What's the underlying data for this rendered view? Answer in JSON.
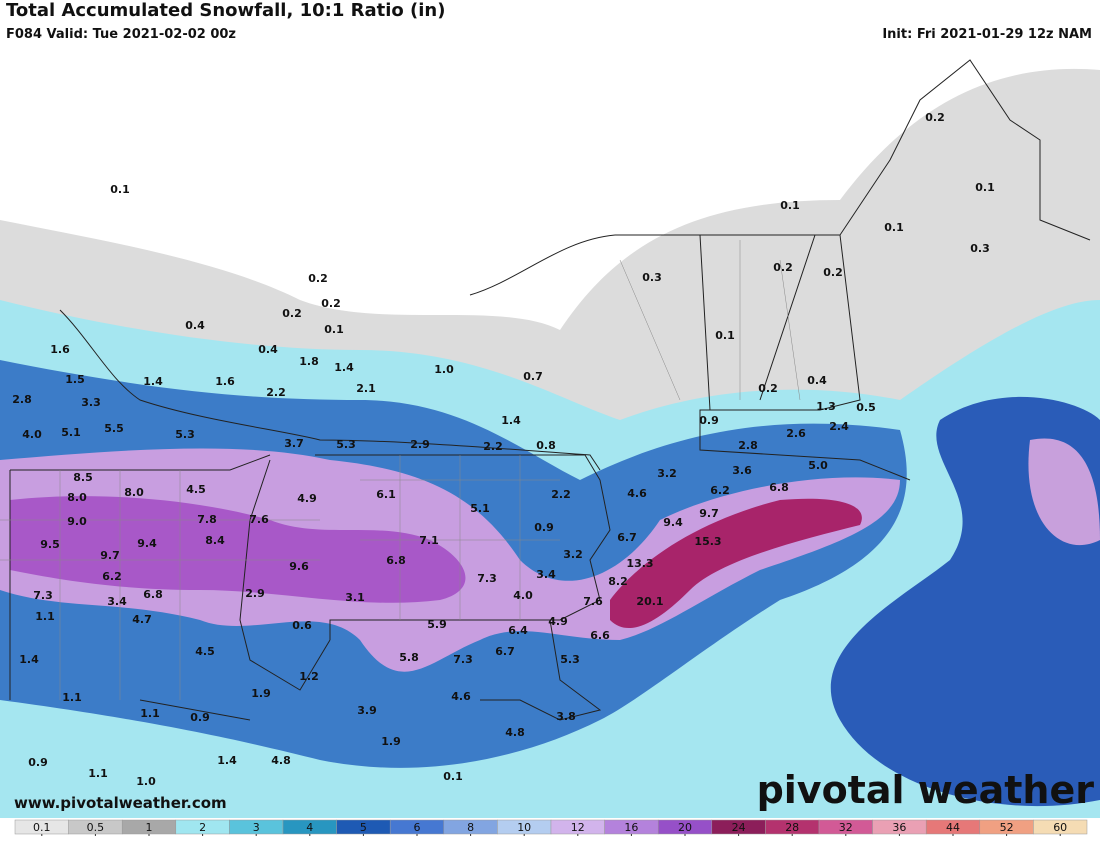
{
  "header": {
    "title": "Total Accumulated Snowfall, 10:1 Ratio (in)",
    "valid": "F084 Valid: Tue 2021-02-02 00z",
    "init": "Init: Fri 2021-01-29 12z NAM"
  },
  "map": {
    "labels": [
      "0.1",
      "0.2",
      "0.2",
      "0.2",
      "0.1",
      "0.4",
      "0.4",
      "1.6",
      "1.8",
      "1.4",
      "1.0",
      "0.7",
      "1.5",
      "1.4",
      "1.6",
      "2.1",
      "2.2",
      "2.8",
      "3.3",
      "1.4",
      "4.0",
      "5.1",
      "5.5",
      "5.3",
      "3.7",
      "5.3",
      "2.9",
      "2.2",
      "0.8",
      "8.5",
      "8.0",
      "4.5",
      "8.0",
      "4.9",
      "6.1",
      "5.1",
      "2.2",
      "9.0",
      "7.8",
      "7.6",
      "0.9",
      "9.5",
      "9.4",
      "8.4",
      "7.1",
      "9.7",
      "6.8",
      "9.6",
      "3.2",
      "6.2",
      "7.3",
      "3.4",
      "7.3",
      "3.4",
      "6.8",
      "2.9",
      "3.1",
      "4.0",
      "1.1",
      "4.7",
      "0.6",
      "5.9",
      "6.4",
      "4.9",
      "1.4",
      "4.5",
      "5.8",
      "7.3",
      "6.7",
      "5.3",
      "1.2",
      "1.9",
      "4.6",
      "1.1",
      "1.1",
      "0.9",
      "3.9",
      "3.8",
      "4.8",
      "1.9",
      "0.9",
      "1.4",
      "4.8",
      "1.1",
      "1.0",
      "0.1",
      "0.2",
      "0.1",
      "0.1",
      "0.1",
      "0.3",
      "0.3",
      "0.2",
      "0.2",
      "0.1",
      "0.2",
      "0.4",
      "0.9",
      "1.3",
      "0.5",
      "2.4",
      "2.8",
      "2.6",
      "3.2",
      "3.6",
      "5.0",
      "4.6",
      "6.2",
      "6.8",
      "9.7",
      "9.4",
      "6.7",
      "15.3",
      "13.3",
      "8.2",
      "7.6",
      "20.1",
      "6.6"
    ]
  },
  "footer": {
    "website": "www.pivotalweather.com",
    "logo": "pivotal weather"
  },
  "colorbar": {
    "ticks": [
      0.1,
      0.5,
      1,
      2,
      3,
      4,
      5,
      6,
      8,
      10,
      12,
      16,
      20,
      24,
      28,
      32,
      36,
      44,
      52,
      60
    ],
    "colors": [
      "#e6e6e6",
      "#c8c8c8",
      "#a8a8a8",
      "#a0e6f0",
      "#5ac3dc",
      "#2896c0",
      "#1e5ab4",
      "#4678d2",
      "#82a5e1",
      "#b4cdf0",
      "#d2b4ec",
      "#b482dc",
      "#9650c8",
      "#8c1e5a",
      "#b4326e",
      "#d25a96",
      "#eaa0b4",
      "#e67878",
      "#f0a082",
      "#f5dcb4"
    ]
  }
}
